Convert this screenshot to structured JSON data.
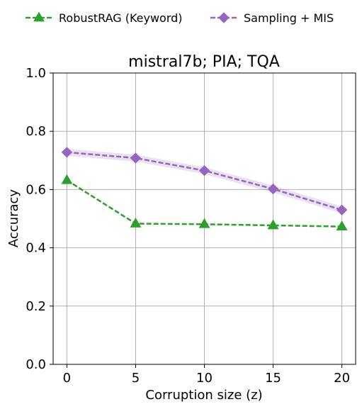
{
  "chart_data": {
    "type": "line",
    "title": "mistral7b; PIA; TQA",
    "xlabel": "Corruption size (z)",
    "ylabel": "Accuracy",
    "x": [
      0,
      5,
      10,
      15,
      20
    ],
    "xlim": [
      -1,
      21
    ],
    "ylim": [
      0.0,
      1.0
    ],
    "xticks": [
      "0",
      "5",
      "10",
      "15",
      "20"
    ],
    "yticks": [
      "0.0",
      "0.2",
      "0.4",
      "0.6",
      "0.8",
      "1.0"
    ],
    "grid": true,
    "legend_position": "top, above plot",
    "series": [
      {
        "name": "RobustRAG (Keyword)",
        "values": [
          0.632,
          0.483,
          0.481,
          0.477,
          0.473
        ],
        "color": "#2ca02c",
        "marker": "triangle",
        "band": 0.0
      },
      {
        "name": "Sampling + MIS",
        "values": [
          0.728,
          0.708,
          0.665,
          0.602,
          0.53
        ],
        "color": "#9467bd",
        "marker": "diamond",
        "band": 0.012
      }
    ]
  }
}
